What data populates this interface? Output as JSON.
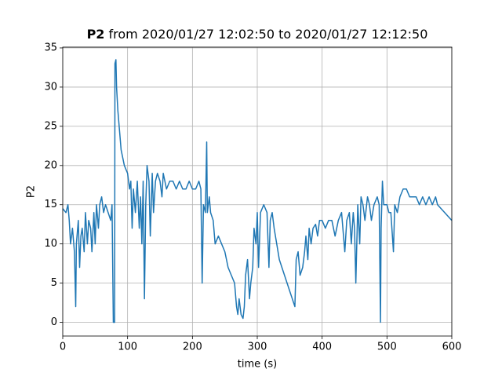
{
  "chart_data": {
    "type": "line",
    "title_parts": [
      "P2",
      "from 2020/01/27 12:02:50 to 2020/01/27 12:12:50"
    ],
    "xlabel": "time (s)",
    "ylabel": "P2",
    "color": "#1f77b4",
    "grid": true,
    "xlim": [
      0,
      600
    ],
    "xticks": [
      0,
      100,
      200,
      300,
      400,
      500,
      600
    ],
    "ylim": [
      -1.75,
      35.1
    ],
    "yticks": [
      0,
      5,
      10,
      15,
      20,
      25,
      30,
      35
    ],
    "x": [
      0,
      5,
      8,
      10,
      12,
      15,
      18,
      20,
      21,
      24,
      26,
      28,
      30,
      33,
      35,
      38,
      40,
      43,
      45,
      48,
      50,
      52,
      55,
      57,
      60,
      63,
      66,
      70,
      74,
      76,
      78,
      80,
      80.5,
      82,
      83,
      85,
      88,
      90,
      95,
      100,
      103,
      105,
      107,
      109,
      112,
      115,
      118,
      120,
      122,
      124,
      126,
      128,
      130,
      133,
      135,
      138,
      140,
      143,
      146,
      150,
      153,
      155,
      160,
      165,
      170,
      175,
      180,
      185,
      190,
      195,
      200,
      205,
      210,
      213,
      215,
      217,
      220,
      222,
      223,
      226,
      228,
      232,
      235,
      240,
      245,
      250,
      255,
      260,
      265,
      268,
      270,
      272,
      275,
      278,
      280,
      282,
      285,
      288,
      290,
      293,
      295,
      298,
      300,
      302,
      305,
      310,
      315,
      318,
      320,
      323,
      326,
      330,
      334,
      338,
      342,
      346,
      350,
      354,
      358,
      360,
      363,
      366,
      370,
      373,
      375,
      378,
      380,
      383,
      386,
      390,
      393,
      396,
      400,
      405,
      410,
      415,
      420,
      425,
      430,
      435,
      438,
      442,
      445,
      448,
      450,
      452,
      455,
      458,
      460,
      463,
      466,
      470,
      473,
      476,
      480,
      485,
      488,
      490,
      491,
      493,
      495,
      500,
      503,
      506,
      510,
      512,
      516,
      520,
      525,
      530,
      535,
      540,
      545,
      550,
      555,
      560,
      565,
      570,
      575,
      578,
      600
    ],
    "values": [
      14.5,
      14,
      15,
      13,
      10,
      12,
      9,
      2,
      10,
      13,
      7,
      11,
      12,
      9,
      14,
      10,
      13,
      12,
      9,
      14,
      10,
      15,
      12,
      15,
      16,
      14,
      15,
      14,
      13,
      15,
      0,
      0,
      33,
      33.5,
      30,
      27,
      24,
      22,
      20,
      19,
      17,
      18,
      12,
      17,
      14,
      18,
      12,
      16,
      10,
      18,
      3,
      15,
      20,
      18,
      11,
      19,
      14,
      18,
      19,
      18,
      16,
      19,
      17,
      18,
      18,
      17,
      18,
      17,
      17,
      18,
      17,
      17,
      18,
      17,
      5,
      15,
      14,
      23,
      14,
      16,
      14,
      13,
      10,
      11,
      10,
      9,
      7,
      6,
      5,
      2,
      1,
      3,
      1,
      0.5,
      2,
      6,
      8,
      3,
      5,
      7,
      12,
      10,
      14,
      7,
      14,
      15,
      14,
      7,
      13,
      14,
      12,
      10,
      8,
      7,
      6,
      5,
      4,
      3,
      2,
      8,
      9,
      6,
      7,
      9,
      11,
      8,
      12,
      10,
      12,
      12.5,
      11,
      13,
      13,
      12,
      13,
      13,
      11,
      13,
      14,
      9,
      13,
      14,
      10,
      14,
      12,
      5,
      15,
      10,
      16,
      15,
      13,
      16,
      15,
      13,
      15,
      16,
      15,
      0,
      12,
      18,
      15,
      15,
      14,
      14,
      9,
      15,
      14,
      16,
      17,
      17,
      16,
      16,
      16,
      15,
      16,
      15,
      16,
      15,
      16,
      15,
      13
    ]
  }
}
